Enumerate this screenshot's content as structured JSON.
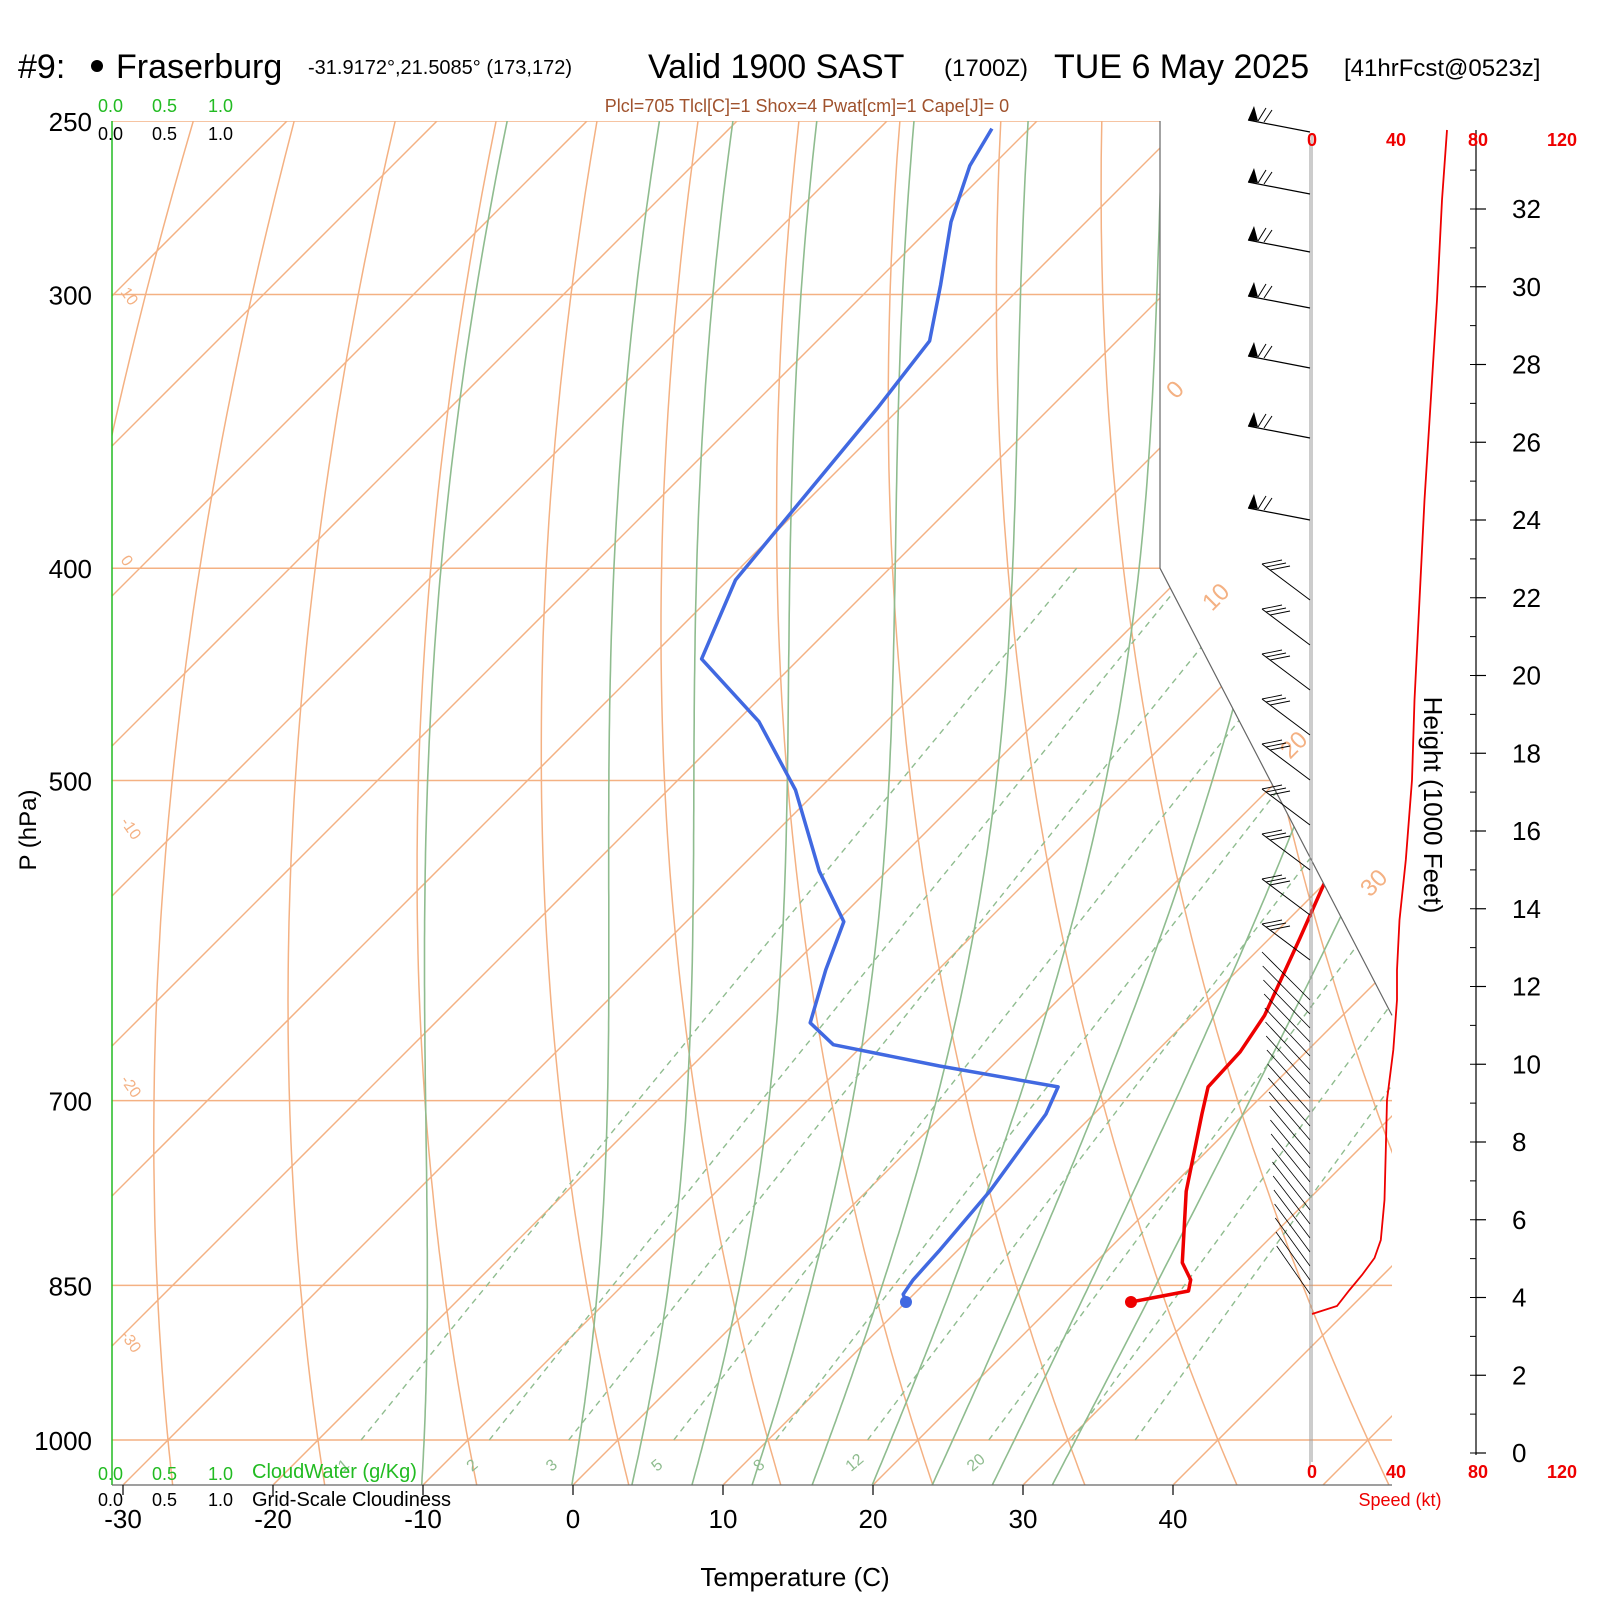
{
  "header": {
    "station_id": "#9:",
    "station_name": "Fraserburg",
    "coords": "-31.9172°,21.5085° (173,172)",
    "valid": "Valid 1900 SAST",
    "zulu": "(1700Z)",
    "date": "TUE 6 May 2025",
    "forecast": "[41hrFcst@0523z]"
  },
  "indices": "Plcl=705 Tlcl[C]=1 Shox=4 Pwat[cm]=1 Cape[J]= 0",
  "colors": {
    "temperature": "#ee0000",
    "dewpoint": "#4169e1",
    "isotherm": "#f4b183",
    "moist_adiabat": "#8fbc8f",
    "mixing_ratio": "#8fbc8f",
    "cloudwater": "#22bb22",
    "wind_speed": "#ee0000"
  },
  "chart_data": {
    "type": "line",
    "title": "",
    "xlabel": "Temperature (C)",
    "ylabel": "P (hPa)",
    "y2label": "Height (1000 Feet)",
    "x_ticks": [
      -30,
      -20,
      -10,
      0,
      10,
      20,
      30,
      40
    ],
    "p_ticks": [
      250,
      300,
      400,
      500,
      700,
      850,
      1000
    ],
    "height_ticks": [
      0,
      2,
      4,
      6,
      8,
      10,
      12,
      14,
      16,
      18,
      20,
      22,
      24,
      26,
      28,
      30,
      32
    ],
    "isotherm_labels": [
      "10",
      "0",
      "-10",
      "-20",
      "-30"
    ],
    "theta_labels": [
      "0",
      "10",
      "20",
      "30"
    ],
    "mixing_ratio_labels": [
      "1",
      "2",
      "3",
      "5",
      "8",
      "12",
      "20"
    ],
    "cloud_scale_top": [
      "0.0",
      "0.5",
      "1.0"
    ],
    "cloud_scale_bottom": [
      "0.0",
      "0.5",
      "1.0"
    ],
    "cloudwater_label": "CloudWater (g/Kg)",
    "cloudiness_label": "Grid-Scale Cloudiness",
    "speed_ticks": [
      "0",
      "40",
      "80",
      "120"
    ],
    "speed_label": "Speed (kt)",
    "series": [
      {
        "name": "Temperature",
        "points": [
          [
            25,
            865
          ],
          [
            28.1,
            855
          ],
          [
            27.5,
            845
          ],
          [
            25.8,
            830
          ],
          [
            21.3,
            770
          ],
          [
            17.2,
            710
          ],
          [
            15.8,
            690
          ],
          [
            15.6,
            665
          ],
          [
            14.8,
            640
          ],
          [
            12.0,
            590
          ],
          [
            9.2,
            545
          ],
          [
            7.5,
            515
          ],
          [
            6.4,
            480
          ],
          [
            4.8,
            445
          ],
          [
            2.6,
            410
          ],
          [
            -0.2,
            375
          ],
          [
            -3.0,
            345
          ],
          [
            -6.5,
            310
          ],
          [
            -9.8,
            282
          ],
          [
            -12.5,
            257
          ]
        ]
      },
      {
        "name": "Dewpoint",
        "points": [
          [
            10,
            865
          ],
          [
            9.3,
            858
          ],
          [
            9.0,
            845
          ],
          [
            8.8,
            820
          ],
          [
            8.2,
            770
          ],
          [
            6.8,
            710
          ],
          [
            5.8,
            690
          ],
          [
            -3.5,
            675
          ],
          [
            -12.0,
            660
          ],
          [
            -15.0,
            645
          ],
          [
            -17.5,
            610
          ],
          [
            -19.5,
            580
          ],
          [
            -24.5,
            550
          ],
          [
            -31.5,
            505
          ],
          [
            -38.5,
            470
          ],
          [
            -46.5,
            440
          ],
          [
            -49.5,
            405
          ],
          [
            -50.5,
            370
          ],
          [
            -51.5,
            338
          ],
          [
            -52.5,
            315
          ],
          [
            -55.5,
            297
          ],
          [
            -59.0,
            278
          ],
          [
            -61.5,
            262
          ],
          [
            -62.5,
            252
          ]
        ]
      }
    ],
    "surface_temp": 25,
    "surface_dewpoint": 10,
    "surface_pressure": 865
  }
}
